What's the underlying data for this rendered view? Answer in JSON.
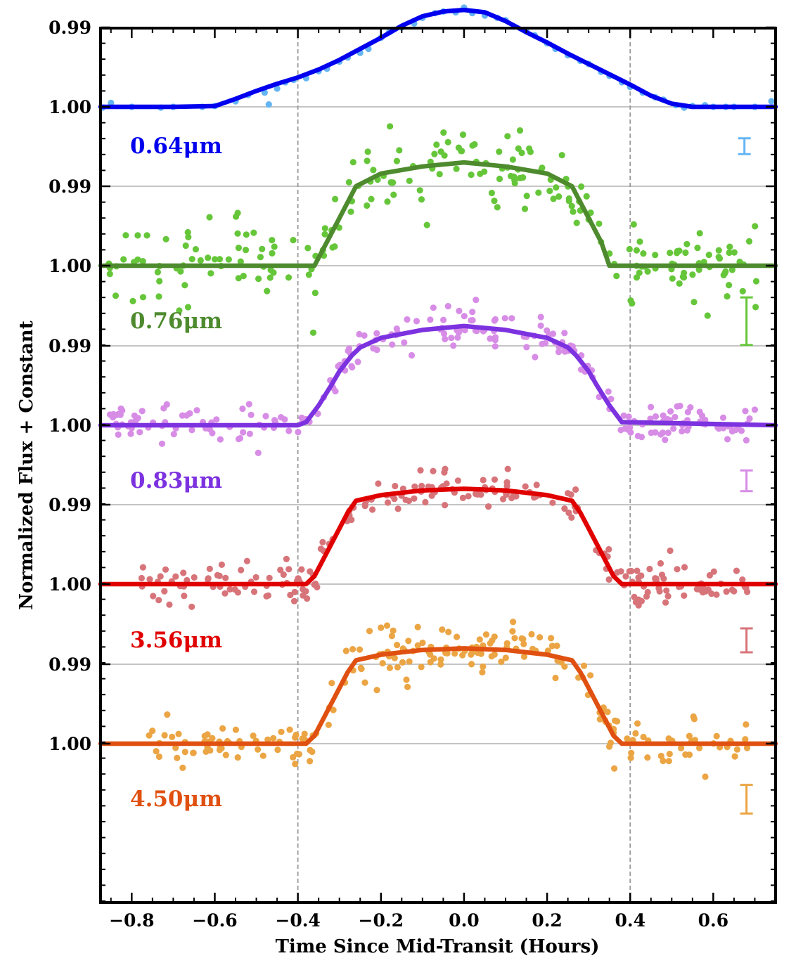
{
  "chart_data": {
    "type": "scatter",
    "title": "",
    "xlabel": "Time Since Mid-Transit (Hours)",
    "ylabel": "Normalized Flux + Constant",
    "xlim": [
      -0.875,
      0.75
    ],
    "x_ticks": [
      -0.8,
      -0.6,
      -0.4,
      -0.2,
      0.0,
      0.2,
      0.4,
      0.6
    ],
    "x_tick_labels": [
      "−0.8",
      "−0.6",
      "−0.4",
      "−0.2",
      "0.0",
      "0.2",
      "0.4",
      "0.6"
    ],
    "grid": "horizontal",
    "vertical_reference_lines_x": [
      -0.4,
      0.4
    ],
    "offset_between_panels": 0.02,
    "series": [
      {
        "name": "0.64μm",
        "label": "0.64μm",
        "point_color": "#66b5f3",
        "model_color": "#0000ee",
        "y_ticks": [
          {
            "value": 1.0,
            "label": "1.00"
          },
          {
            "value": 0.99,
            "label": "0.99"
          }
        ],
        "depth": 0.012,
        "model_shape": "v-shaped",
        "model_x": [
          -0.875,
          -0.8,
          -0.7,
          -0.6,
          -0.55,
          -0.5,
          -0.45,
          -0.4,
          -0.35,
          -0.3,
          -0.25,
          -0.2,
          -0.15,
          -0.1,
          -0.05,
          0.0,
          0.05,
          0.1,
          0.15,
          0.2,
          0.25,
          0.3,
          0.35,
          0.4,
          0.45,
          0.5,
          0.55,
          0.6,
          0.7,
          0.75
        ],
        "model_y": [
          1.0,
          1.0,
          1.0,
          0.9999,
          0.999,
          0.998,
          0.9971,
          0.9963,
          0.9953,
          0.9941,
          0.9927,
          0.9913,
          0.9898,
          0.9886,
          0.988,
          0.9878,
          0.9881,
          0.9892,
          0.9906,
          0.9919,
          0.9933,
          0.9946,
          0.9959,
          0.9972,
          0.9986,
          0.9996,
          1.0,
          1.0,
          1.0,
          1.0
        ],
        "points": [
          [
            -0.87,
            1.0001
          ],
          [
            -0.85,
            0.9995
          ],
          [
            -0.8,
            1.0
          ],
          [
            -0.73,
            1.0001
          ],
          [
            -0.7,
            1.0
          ],
          [
            -0.63,
            1.0
          ],
          [
            -0.6,
            0.9999
          ],
          [
            -0.55,
            0.9993
          ],
          [
            -0.52,
            0.9985
          ],
          [
            -0.48,
            0.9982
          ],
          [
            -0.45,
            0.9977
          ],
          [
            -0.43,
            0.9969
          ],
          [
            -0.41,
            0.9966
          ],
          [
            -0.38,
            0.9964
          ],
          [
            -0.35,
            0.9955
          ],
          [
            -0.33,
            0.9952
          ],
          [
            -0.3,
            0.9943
          ],
          [
            -0.28,
            0.9938
          ],
          [
            -0.25,
            0.9932
          ],
          [
            -0.23,
            0.9927
          ],
          [
            -0.2,
            0.9913
          ],
          [
            -0.18,
            0.9906
          ],
          [
            -0.15,
            0.99
          ],
          [
            -0.12,
            0.9895
          ],
          [
            -0.1,
            0.9888
          ],
          [
            -0.07,
            0.9882
          ],
          [
            -0.05,
            0.988
          ],
          [
            -0.02,
            0.9881
          ],
          [
            0.0,
            0.9875
          ],
          [
            0.02,
            0.9882
          ],
          [
            0.05,
            0.9885
          ],
          [
            0.08,
            0.9888
          ],
          [
            0.1,
            0.9891
          ],
          [
            0.12,
            0.9899
          ],
          [
            0.15,
            0.9905
          ],
          [
            0.17,
            0.991
          ],
          [
            0.2,
            0.992
          ],
          [
            0.22,
            0.9927
          ],
          [
            0.25,
            0.9935
          ],
          [
            0.28,
            0.9942
          ],
          [
            0.3,
            0.9946
          ],
          [
            0.33,
            0.9956
          ],
          [
            0.35,
            0.9961
          ],
          [
            0.38,
            0.9969
          ],
          [
            0.4,
            0.9975
          ],
          [
            0.43,
            0.9982
          ],
          [
            0.46,
            0.9988
          ],
          [
            0.48,
            0.9991
          ],
          [
            0.51,
            0.9998
          ],
          [
            0.53,
            1.0001
          ],
          [
            0.55,
            0.9999
          ],
          [
            0.58,
            0.9998
          ],
          [
            0.6,
            1.0
          ],
          [
            0.63,
            1.0
          ],
          [
            0.65,
            1.0
          ],
          [
            0.7,
            1.0
          ],
          [
            -0.47,
            0.9997
          ],
          [
            0.74,
            0.9993
          ]
        ],
        "error_bar_half_height": 0.001,
        "error_bar_x": 0.675
      },
      {
        "name": "0.76μm",
        "label": "0.76μm",
        "point_color": "#66c63a",
        "model_color": "#4e8a2e",
        "y_ticks": [
          {
            "value": 1.0,
            "label": "1.00"
          },
          {
            "value": 0.99,
            "label": "0.99"
          }
        ],
        "depth": 0.013,
        "t_ingress_start": -0.36,
        "t_ingress_end": -0.26,
        "model_shape": "flat-bottom",
        "model_x": [
          -0.875,
          -0.4,
          -0.36,
          -0.33,
          -0.3,
          -0.28,
          -0.26,
          -0.2,
          -0.1,
          0.0,
          0.1,
          0.2,
          0.26,
          0.28,
          0.3,
          0.33,
          0.35,
          0.75
        ],
        "model_y": [
          1.0,
          1.0,
          1.0,
          0.997,
          0.994,
          0.992,
          0.99,
          0.9884,
          0.9875,
          0.987,
          0.9875,
          0.9884,
          0.99,
          0.992,
          0.994,
          0.997,
          1.0,
          1.0
        ],
        "error_bar_half_height": 0.003,
        "error_bar_x": 0.68
      },
      {
        "name": "0.83μm",
        "label": "0.83μm",
        "point_color": "#d78de6",
        "model_color": "#7d32e0",
        "y_ticks": [
          {
            "value": 1.0,
            "label": "1.00"
          },
          {
            "value": 0.99,
            "label": "0.99"
          }
        ],
        "depth": 0.0125,
        "model_shape": "flat-bottom",
        "model_x": [
          -0.875,
          -0.4,
          -0.38,
          -0.35,
          -0.32,
          -0.3,
          -0.27,
          -0.25,
          -0.2,
          -0.1,
          0.0,
          0.1,
          0.2,
          0.25,
          0.27,
          0.3,
          0.32,
          0.35,
          0.38,
          0.75
        ],
        "model_y": [
          1.0,
          1.0,
          0.9996,
          0.9975,
          0.995,
          0.9932,
          0.9912,
          0.9902,
          0.989,
          0.988,
          0.9875,
          0.988,
          0.989,
          0.9902,
          0.9912,
          0.9932,
          0.995,
          0.9975,
          0.9996,
          1.0
        ],
        "error_bar_half_height": 0.0013,
        "error_bar_x": 0.68
      },
      {
        "name": "3.56μm",
        "label": "3.56μm",
        "point_color": "#d7747a",
        "model_color": "#e00000",
        "y_ticks": [
          {
            "value": 1.0,
            "label": "1.00"
          },
          {
            "value": 0.99,
            "label": "0.99"
          }
        ],
        "depth": 0.012,
        "model_shape": "flat-bottom",
        "model_x": [
          -0.875,
          -0.38,
          -0.36,
          -0.33,
          -0.3,
          -0.28,
          -0.26,
          -0.2,
          -0.1,
          0.0,
          0.1,
          0.2,
          0.26,
          0.28,
          0.3,
          0.33,
          0.36,
          0.38,
          0.75
        ],
        "model_y": [
          1.0,
          1.0,
          0.999,
          0.996,
          0.993,
          0.991,
          0.9895,
          0.9888,
          0.9882,
          0.988,
          0.9882,
          0.9888,
          0.9895,
          0.991,
          0.993,
          0.996,
          0.999,
          1.0,
          1.0
        ],
        "error_bar_half_height": 0.0015,
        "error_bar_x": 0.68
      },
      {
        "name": "4.50μm",
        "label": "4.50μm",
        "point_color": "#eba544",
        "model_color": "#e05010",
        "y_ticks": [
          {
            "value": 1.0,
            "label": "1.00"
          },
          {
            "value": 0.99,
            "label": "0.99"
          }
        ],
        "depth": 0.012,
        "model_shape": "flat-bottom",
        "model_x": [
          -0.875,
          -0.38,
          -0.36,
          -0.33,
          -0.3,
          -0.28,
          -0.26,
          -0.2,
          -0.1,
          0.0,
          0.1,
          0.2,
          0.26,
          0.28,
          0.3,
          0.33,
          0.36,
          0.38,
          0.75
        ],
        "model_y": [
          1.0,
          1.0,
          0.999,
          0.996,
          0.993,
          0.991,
          0.9895,
          0.9888,
          0.9882,
          0.988,
          0.9882,
          0.9888,
          0.9895,
          0.991,
          0.993,
          0.996,
          0.999,
          1.0,
          1.0
        ],
        "error_bar_half_height": 0.0018,
        "error_bar_x": 0.68
      }
    ]
  }
}
